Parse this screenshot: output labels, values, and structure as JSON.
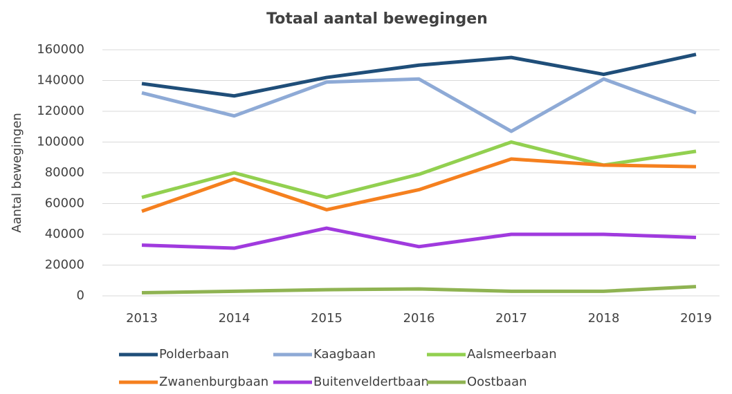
{
  "chart_data": {
    "type": "line",
    "title": "Totaal aantal bewegingen",
    "y_label": "Aantal bewegingen",
    "categories": [
      "2013",
      "2014",
      "2015",
      "2016",
      "2017",
      "2018",
      "2019"
    ],
    "series": [
      {
        "name": "Polderbaan",
        "color": "#1f4e79",
        "values": [
          138000,
          130000,
          142000,
          150000,
          155000,
          144000,
          157000
        ]
      },
      {
        "name": "Kaagbaan",
        "color": "#8eaad6",
        "values": [
          132000,
          117000,
          139000,
          141000,
          107000,
          141000,
          119000
        ]
      },
      {
        "name": "Aalsmeerbaan",
        "color": "#92d050",
        "values": [
          64000,
          80000,
          64000,
          79000,
          100000,
          85000,
          94000
        ]
      },
      {
        "name": "Zwanenburgbaan",
        "color": "#f5801f",
        "values": [
          55000,
          76000,
          56000,
          69000,
          89000,
          85000,
          84000
        ]
      },
      {
        "name": "Buitenveldertbaan",
        "color": "#a03ade",
        "values": [
          33000,
          31000,
          44000,
          32000,
          40000,
          40000,
          38000
        ]
      },
      {
        "name": "Oostbaan",
        "color": "#8fb352",
        "values": [
          2000,
          3000,
          4000,
          4500,
          3000,
          3000,
          6000
        ]
      }
    ],
    "ylim": [
      0,
      160000
    ],
    "yticks": [
      0,
      20000,
      40000,
      60000,
      80000,
      100000,
      120000,
      140000,
      160000
    ],
    "grid": true,
    "legend": "bottom"
  }
}
